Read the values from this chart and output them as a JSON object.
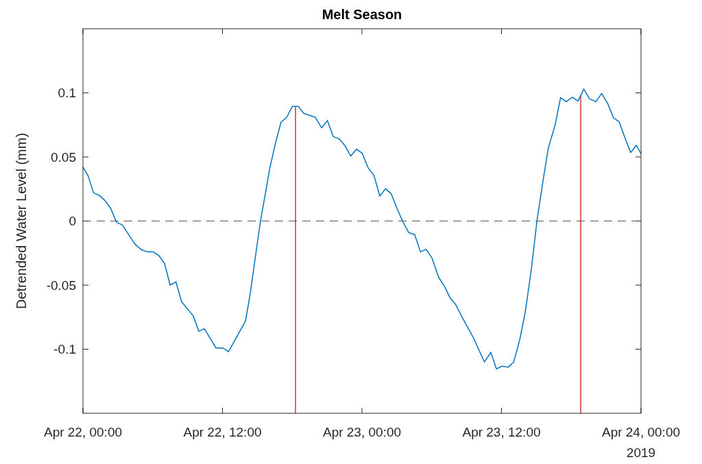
{
  "chart_data": {
    "type": "line",
    "title": "Melt Season",
    "ylabel": "Detrended Water Level (mm)",
    "annotations": [
      "2019"
    ],
    "xlim": [
      "2019-04-22T00:00",
      "2019-04-24T00:00"
    ],
    "xticks": [
      {
        "value": "2019-04-22T00:00",
        "label": "Apr 22, 00:00"
      },
      {
        "value": "2019-04-22T12:00",
        "label": "Apr 22, 12:00"
      },
      {
        "value": "2019-04-23T00:00",
        "label": "Apr 23, 00:00"
      },
      {
        "value": "2019-04-23T12:00",
        "label": "Apr 23, 12:00"
      },
      {
        "value": "2019-04-24T00:00",
        "label": "Apr 24, 00:00"
      }
    ],
    "ylim": [
      -0.15,
      0.15
    ],
    "yticks": [
      -0.1,
      -0.05,
      0,
      0.05,
      0.1
    ],
    "grid": false,
    "marker": "none",
    "line_style": "solid",
    "ref_lines": [
      {
        "axis": "y",
        "value": 0,
        "color": "#555555",
        "line_style": "dashed"
      },
      {
        "axis": "x",
        "value": "2019-04-22T18:17",
        "color": "#cc0000",
        "line_style": "solid"
      },
      {
        "axis": "x",
        "value": "2019-04-23T18:49",
        "color": "#cc0000",
        "line_style": "solid"
      }
    ],
    "series": [
      {
        "color": "#0072bd",
        "x": [
          "2019-04-22T00:00",
          "2019-04-22T00:26",
          "2019-04-22T00:55",
          "2019-04-22T01:25",
          "2019-04-22T01:54",
          "2019-04-22T02:24",
          "2019-04-22T02:53",
          "2019-04-22T03:23",
          "2019-04-22T04:28",
          "2019-04-22T05:03",
          "2019-04-22T05:32",
          "2019-04-22T06:02",
          "2019-04-22T06:32",
          "2019-04-22T07:01",
          "2019-04-22T07:30",
          "2019-04-22T08:00",
          "2019-04-22T08:29",
          "2019-04-22T09:29",
          "2019-04-22T09:58",
          "2019-04-22T10:27",
          "2019-04-22T11:26",
          "2019-04-22T12:02",
          "2019-04-22T12:31",
          "2019-04-22T13:59",
          "2019-04-22T14:23",
          "2019-04-22T15:16",
          "2019-04-22T15:34",
          "2019-04-22T16:04",
          "2019-04-22T16:33",
          "2019-04-22T17:02",
          "2019-04-22T17:32",
          "2019-04-22T18:01",
          "2019-04-22T18:31",
          "2019-04-22T19:00",
          "2019-04-22T19:59",
          "2019-04-22T20:32",
          "2019-04-22T21:02",
          "2019-04-22T21:31",
          "2019-04-22T22:03",
          "2019-04-22T22:32",
          "2019-04-22T23:02",
          "2019-04-22T23:32",
          "2019-04-23T00:01",
          "2019-04-23T00:31",
          "2019-04-23T01:02",
          "2019-04-23T01:32",
          "2019-04-23T02:01",
          "2019-04-23T02:31",
          "2019-04-23T03:04",
          "2019-04-23T03:33",
          "2019-04-23T04:02",
          "2019-04-23T04:32",
          "2019-04-23T05:02",
          "2019-04-23T05:31",
          "2019-04-23T06:01",
          "2019-04-23T06:36",
          "2019-04-23T07:05",
          "2019-04-23T07:35",
          "2019-04-23T08:05",
          "2019-04-23T08:34",
          "2019-04-23T09:33",
          "2019-04-23T10:32",
          "2019-04-23T11:05",
          "2019-04-23T11:34",
          "2019-04-23T12:04",
          "2019-04-23T12:34",
          "2019-04-23T13:03",
          "2019-04-23T13:35",
          "2019-04-23T14:04",
          "2019-04-23T14:34",
          "2019-04-23T15:03",
          "2019-04-23T15:33",
          "2019-04-23T16:02",
          "2019-04-23T16:38",
          "2019-04-23T17:05",
          "2019-04-23T17:34",
          "2019-04-23T18:06",
          "2019-04-23T18:35",
          "2019-04-23T19:05",
          "2019-04-23T19:34",
          "2019-04-23T20:07",
          "2019-04-23T20:37",
          "2019-04-23T21:08",
          "2019-04-23T21:38",
          "2019-04-23T22:07",
          "2019-04-23T22:37",
          "2019-04-23T23:07",
          "2019-04-23T23:36",
          "2019-04-24T00:00"
        ],
        "values": [
          0.042,
          0.0355,
          0.022,
          0.02,
          0.016,
          0.0096,
          -0.001,
          -0.003,
          -0.018,
          -0.0225,
          -0.024,
          -0.024,
          -0.027,
          -0.033,
          -0.05,
          -0.0475,
          -0.063,
          -0.074,
          -0.086,
          -0.084,
          -0.099,
          -0.099,
          -0.102,
          -0.078,
          -0.057,
          0.0,
          0.015,
          0.041,
          0.0605,
          0.077,
          0.081,
          0.0895,
          0.0895,
          0.084,
          0.081,
          0.0727,
          0.0784,
          0.066,
          0.064,
          0.0588,
          0.0507,
          0.0561,
          0.0529,
          0.0418,
          0.0355,
          0.0195,
          0.0252,
          0.0213,
          0.0087,
          -0.0011,
          -0.0091,
          -0.0106,
          -0.024,
          -0.0221,
          -0.0288,
          -0.044,
          -0.0507,
          -0.06,
          -0.0654,
          -0.0743,
          -0.0904,
          -0.11,
          -0.1024,
          -0.1154,
          -0.1132,
          -0.1141,
          -0.11,
          -0.0922,
          -0.0698,
          -0.0377,
          0.0,
          0.0302,
          0.057,
          0.0757,
          0.0963,
          0.0931,
          0.0966,
          0.0936,
          0.103,
          0.0954,
          0.0931,
          0.0995,
          0.0918,
          0.0805,
          0.0775,
          0.065,
          0.0534,
          0.0591,
          0.0525
        ]
      }
    ]
  }
}
